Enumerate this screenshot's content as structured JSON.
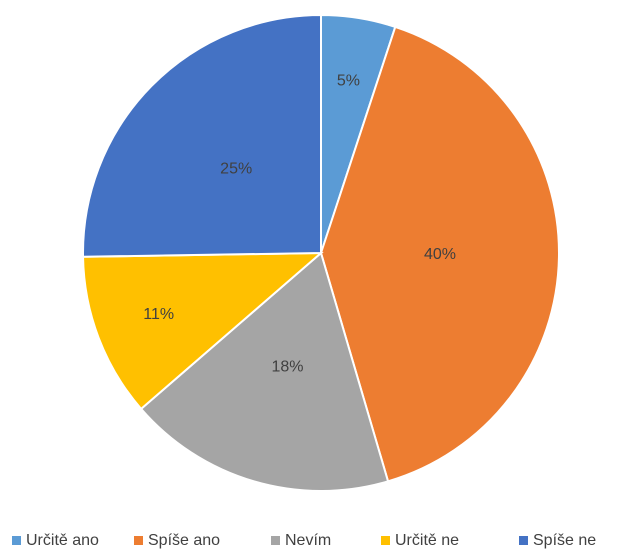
{
  "chart_data": {
    "type": "pie",
    "categories": [
      "Určitě ano",
      "Spíše ano",
      "Nevím",
      "Určitě ne",
      "Spíše ne"
    ],
    "values": [
      5,
      40,
      18,
      11,
      25
    ],
    "value_labels": [
      "5%",
      "40%",
      "18%",
      "11%",
      "25%"
    ],
    "colors": [
      "#5b9bd5",
      "#ed7d31",
      "#a5a5a5",
      "#ffc000",
      "#4472c4"
    ],
    "legend": "bottom"
  }
}
